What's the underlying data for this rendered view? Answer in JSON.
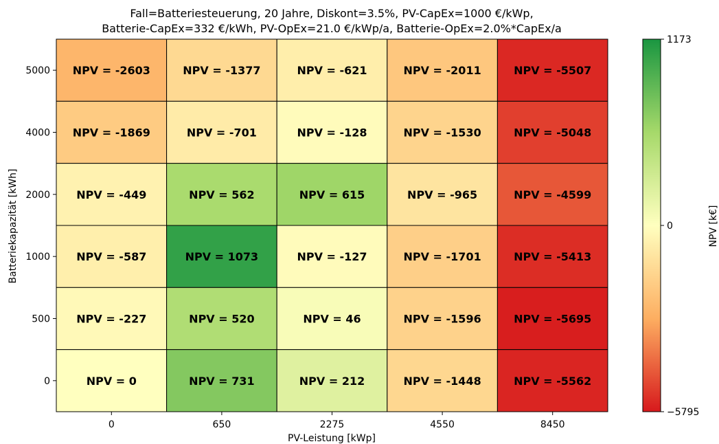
{
  "chart_data": {
    "type": "heatmap",
    "title_lines": [
      "Fall=Batteriesteuerung, 20 Jahre, Diskont=3.5%, PV-CapEx=1000 €/kWp,",
      "Batterie-CapEx=332 €/kWh, PV-OpEx=21.0 €/kWp/a, Batterie-OpEx=2.0%*CapEx/a"
    ],
    "xlabel": "PV-Leistung [kWp]",
    "ylabel": "Batteriekapazität [kWh]",
    "x_categories": [
      "0",
      "650",
      "2275",
      "4550",
      "8450"
    ],
    "y_categories": [
      "5000",
      "4000",
      "2000",
      "1000",
      "500",
      "0"
    ],
    "cell_label_prefix": "NPV = ",
    "values": [
      [
        -2603,
        -1377,
        -621,
        -2011,
        -5507
      ],
      [
        -1869,
        -701,
        -128,
        -1530,
        -5048
      ],
      [
        -449,
        562,
        615,
        -965,
        -4599
      ],
      [
        -587,
        1073,
        -127,
        -1701,
        -5413
      ],
      [
        -227,
        520,
        46,
        -1596,
        -5695
      ],
      [
        0,
        731,
        212,
        -1448,
        -5562
      ]
    ],
    "colorbar": {
      "label": "NPV [k€]",
      "min": -5795,
      "center": 0,
      "max": 1173,
      "tick_labels": [
        "1173",
        "0",
        "−5795"
      ],
      "colors_low_to_high": [
        "#d7191c",
        "#fdae61",
        "#ffffbf",
        "#a6d96a",
        "#1a9641"
      ]
    },
    "grid": false
  }
}
